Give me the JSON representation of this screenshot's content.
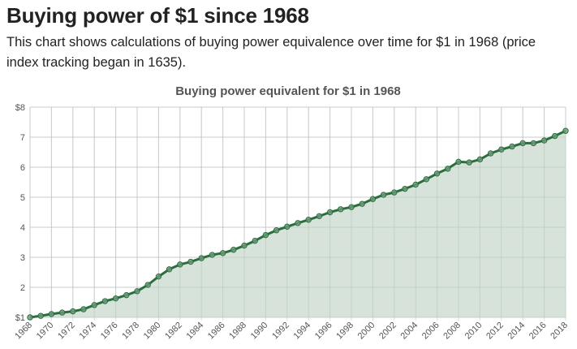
{
  "page": {
    "title": "Buying power of $1 since 1968",
    "description": "This chart shows calculations of buying power equivalence over time for $1 in 1968 (price index tracking began in 1635)."
  },
  "colors": {
    "line": "#2a6e3f",
    "area": "#d5e2d8",
    "grid": "#dddddd",
    "text": "#555555"
  },
  "chart_data": {
    "type": "area",
    "title": "Buying power equivalent for $1 in 1968",
    "xlabel": "",
    "ylabel": "",
    "x": [
      1968,
      1969,
      1970,
      1971,
      1972,
      1973,
      1974,
      1975,
      1976,
      1977,
      1978,
      1979,
      1980,
      1981,
      1982,
      1983,
      1984,
      1985,
      1986,
      1987,
      1988,
      1989,
      1990,
      1991,
      1992,
      1993,
      1994,
      1995,
      1996,
      1997,
      1998,
      1999,
      2000,
      2001,
      2002,
      2003,
      2004,
      2005,
      2006,
      2007,
      2008,
      2009,
      2010,
      2011,
      2012,
      2013,
      2014,
      2015,
      2016,
      2017,
      2018
    ],
    "series": [
      {
        "name": "Buying power equivalent",
        "values": [
          1.0,
          1.05,
          1.11,
          1.16,
          1.2,
          1.27,
          1.41,
          1.54,
          1.63,
          1.74,
          1.87,
          2.08,
          2.36,
          2.6,
          2.76,
          2.85,
          2.97,
          3.08,
          3.14,
          3.25,
          3.39,
          3.55,
          3.74,
          3.9,
          4.02,
          4.14,
          4.25,
          4.37,
          4.5,
          4.6,
          4.67,
          4.78,
          4.94,
          5.08,
          5.16,
          5.28,
          5.42,
          5.6,
          5.79,
          5.95,
          6.18,
          6.16,
          6.26,
          6.46,
          6.59,
          6.69,
          6.8,
          6.8,
          6.89,
          7.04,
          7.21
        ]
      }
    ],
    "xticks": [
      "1968",
      "1970",
      "1972",
      "1974",
      "1976",
      "1978",
      "1980",
      "1982",
      "1984",
      "1986",
      "1988",
      "1990",
      "1992",
      "1994",
      "1996",
      "1998",
      "2000",
      "2002",
      "2004",
      "2006",
      "2008",
      "2010",
      "2012",
      "2014",
      "2016",
      "2018"
    ],
    "yticks": [
      {
        "value": 1,
        "label": "$1"
      },
      {
        "value": 2,
        "label": "2"
      },
      {
        "value": 3,
        "label": "3"
      },
      {
        "value": 4,
        "label": "4"
      },
      {
        "value": 5,
        "label": "5"
      },
      {
        "value": 6,
        "label": "6"
      },
      {
        "value": 7,
        "label": "7"
      },
      {
        "value": 8,
        "label": "$8"
      }
    ],
    "xlim": [
      1968,
      2018
    ],
    "ylim": [
      1,
      8
    ],
    "grid": true,
    "legend": "none"
  }
}
